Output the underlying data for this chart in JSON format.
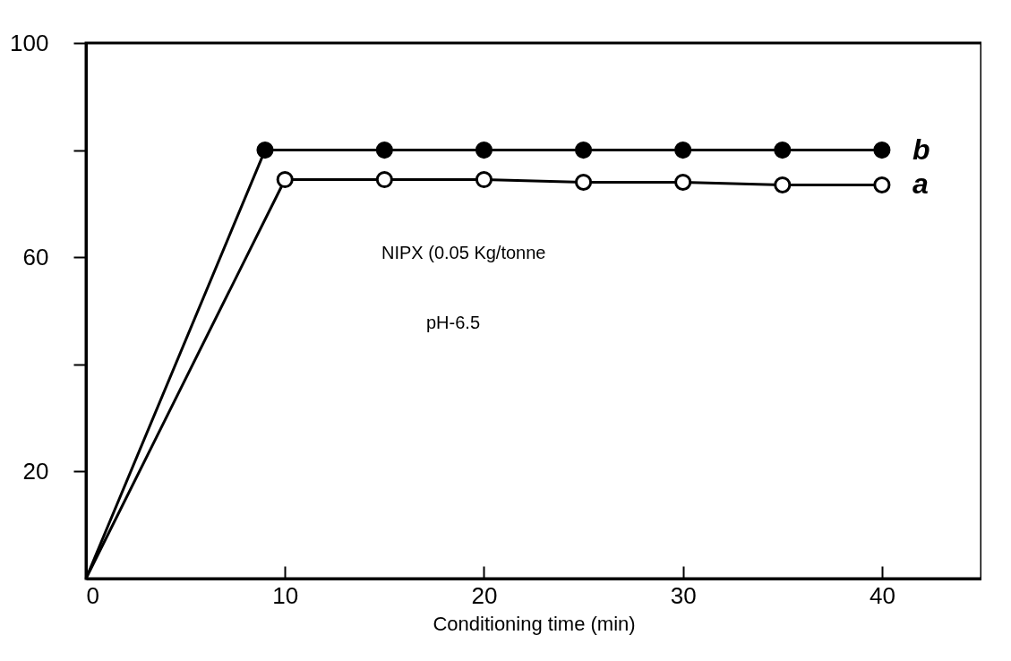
{
  "chart_data": {
    "type": "line",
    "xlabel": "Conditioning time (min)",
    "xlim": [
      0,
      45
    ],
    "xticks": [
      0,
      10,
      20,
      30,
      40
    ],
    "ylim": [
      0,
      100
    ],
    "yticks": [
      {
        "value": 20,
        "label": "20"
      },
      {
        "value": 40,
        "label": null
      },
      {
        "value": 60,
        "label": "60"
      },
      {
        "value": 80,
        "label": null
      },
      {
        "value": 100,
        "label": "100"
      }
    ],
    "series": [
      {
        "name": "b",
        "color": "#000000",
        "x": [
          0,
          9,
          15,
          20,
          25,
          30,
          35,
          40
        ],
        "values": [
          0,
          80,
          80,
          80,
          80,
          80,
          80,
          80
        ]
      },
      {
        "name": "a",
        "color": "#000000",
        "x": [
          0,
          10,
          15,
          20,
          25,
          30,
          35,
          40
        ],
        "values": [
          0,
          74.5,
          74.5,
          74.5,
          74,
          74,
          73.5,
          73.5
        ]
      }
    ],
    "marker": "circle",
    "line_style": "solid",
    "grid": false,
    "legend": false,
    "annotations": [
      "NIPX (0.05 Kg/tonne",
      "pH-6.5"
    ]
  }
}
